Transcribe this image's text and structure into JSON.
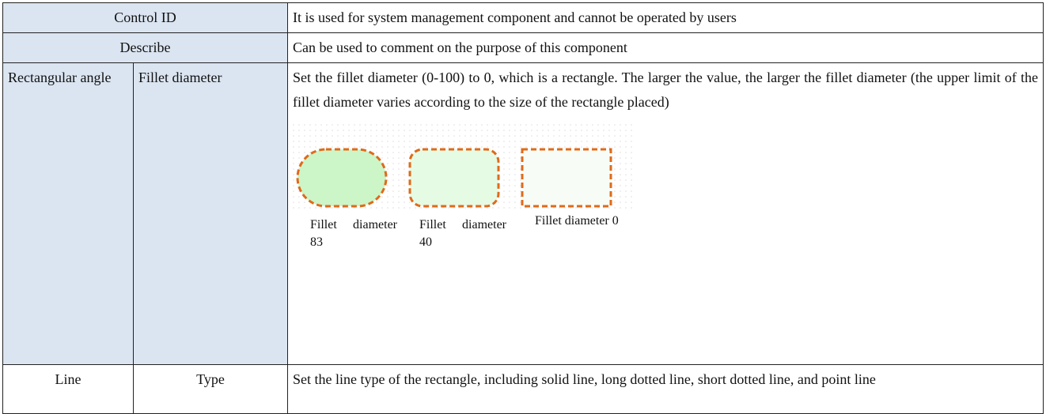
{
  "table": {
    "rows": [
      [
        "Control ID",
        "It is used for system management component and cannot be operated by users"
      ],
      [
        "Describe",
        "Can be used to comment on the purpose of this component"
      ],
      [
        "Rectangular angle",
        "Fillet diameter",
        "Set the fillet diameter (0-100) to 0, which is a rectangle. The larger the value, the larger the fillet diameter (the upper limit of the fillet diameter varies according to the size of the rectangle placed)"
      ],
      [
        "Line",
        "Type",
        "Set the line type of the rectangle, including solid line, long dotted line, short dotted line, and point line"
      ]
    ]
  },
  "figure": {
    "captions": [
      "Fillet diameter 83",
      "Fillet diameter 40",
      "Fillet diameter 0"
    ]
  }
}
